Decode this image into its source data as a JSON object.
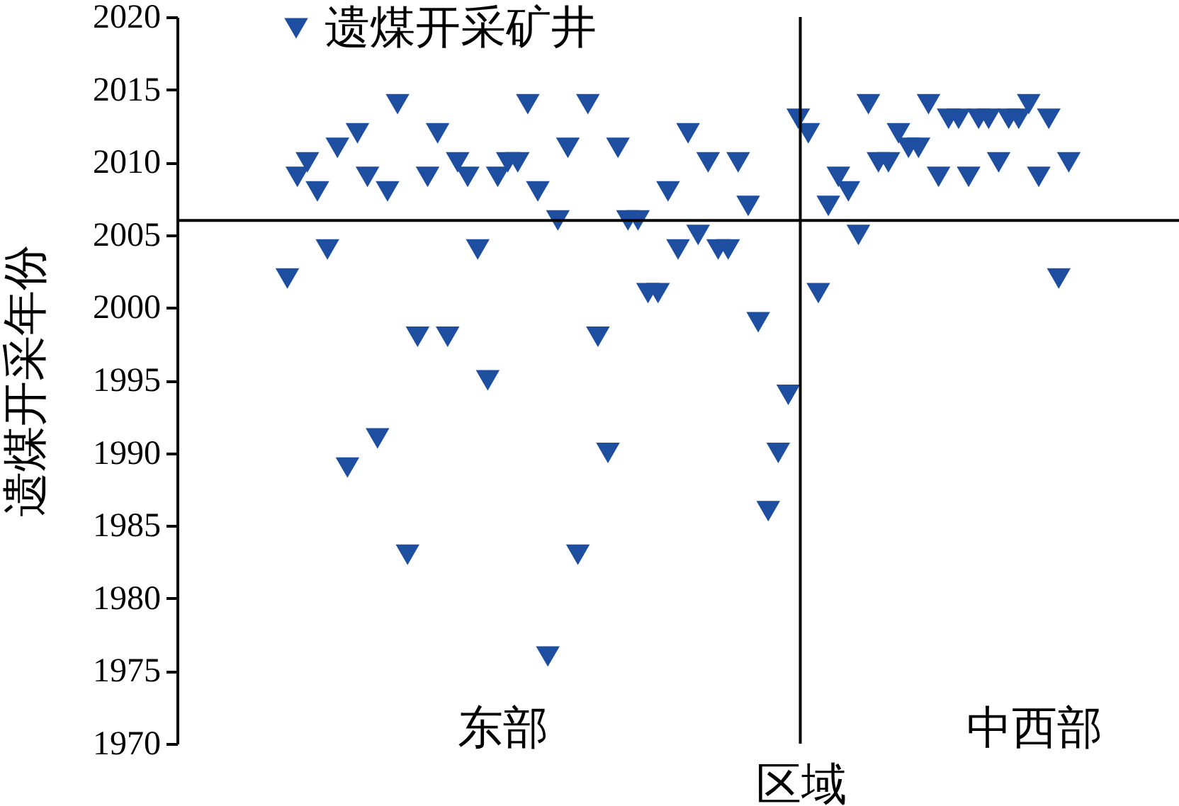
{
  "chart_data": {
    "type": "scatter",
    "xlabel": "区域",
    "ylabel": "遗煤开采年份",
    "categories": [
      null,
      null,
      null,
      null,
      null,
      null,
      null,
      null,
      null,
      null,
      null,
      null,
      null,
      null,
      null,
      null,
      null,
      null,
      null,
      null,
      null,
      null,
      null,
      null,
      null,
      null,
      null,
      null,
      null,
      null,
      null,
      null,
      null,
      null,
      null,
      null,
      null,
      null,
      null,
      null,
      null,
      null,
      null,
      null,
      null,
      null,
      null,
      null,
      null,
      null,
      null,
      null,
      null,
      null,
      null,
      null,
      null,
      null,
      null,
      null,
      null,
      null,
      null,
      null,
      null,
      null,
      null,
      null,
      null,
      null,
      null,
      null,
      null,
      null,
      null,
      null,
      null,
      null,
      null,
      null,
      null,
      null,
      null,
      null,
      null,
      null,
      null,
      null,
      null,
      null,
      null,
      null,
      null,
      null,
      null,
      null,
      null,
      null,
      null,
      null,
      null
    ],
    "series": [
      {
        "name": "遗煤开采矿井",
        "color": "#1e4ea0",
        "values": [
          null,
          null,
          null,
          null,
          null,
          null,
          null,
          null,
          null,
          null,
          null,
          2002,
          2009,
          2010,
          2008,
          2004,
          2011,
          1989,
          2012,
          2009,
          1991,
          2008,
          2014,
          1983,
          1998,
          2009,
          2012,
          1998,
          2010,
          2009,
          2004,
          1995,
          2009,
          2010,
          2010,
          2014,
          2008,
          1976,
          2006,
          2011,
          1983,
          2014,
          1998,
          1990,
          2011,
          2006,
          2006,
          2001,
          2001,
          2008,
          2004,
          2012,
          2005,
          2010,
          2004,
          2004,
          2010,
          2007,
          1999,
          1986,
          1990,
          1994,
          2013,
          2012,
          2001,
          2007,
          2009,
          2008,
          2005,
          2014,
          2010,
          2010,
          2012,
          2011,
          2011,
          2014,
          2009,
          2013,
          2013,
          2009,
          2013,
          2013,
          2010,
          2013,
          2013,
          2014,
          2009,
          2013,
          2002,
          2010,
          null,
          null,
          null,
          null,
          null,
          null,
          null,
          null,
          null,
          null,
          null
        ]
      }
    ],
    "ylim": [
      1970,
      2020
    ],
    "yticks": [
      1970,
      1975,
      1980,
      1985,
      1990,
      1995,
      2000,
      2005,
      2010,
      2015,
      2020
    ],
    "ref_lines": [
      {
        "axis": "y",
        "value": 2006,
        "color": "#000000"
      }
    ],
    "annotations": [
      "东部",
      "中西部"
    ],
    "marker": "triangle",
    "legend": "top left"
  }
}
